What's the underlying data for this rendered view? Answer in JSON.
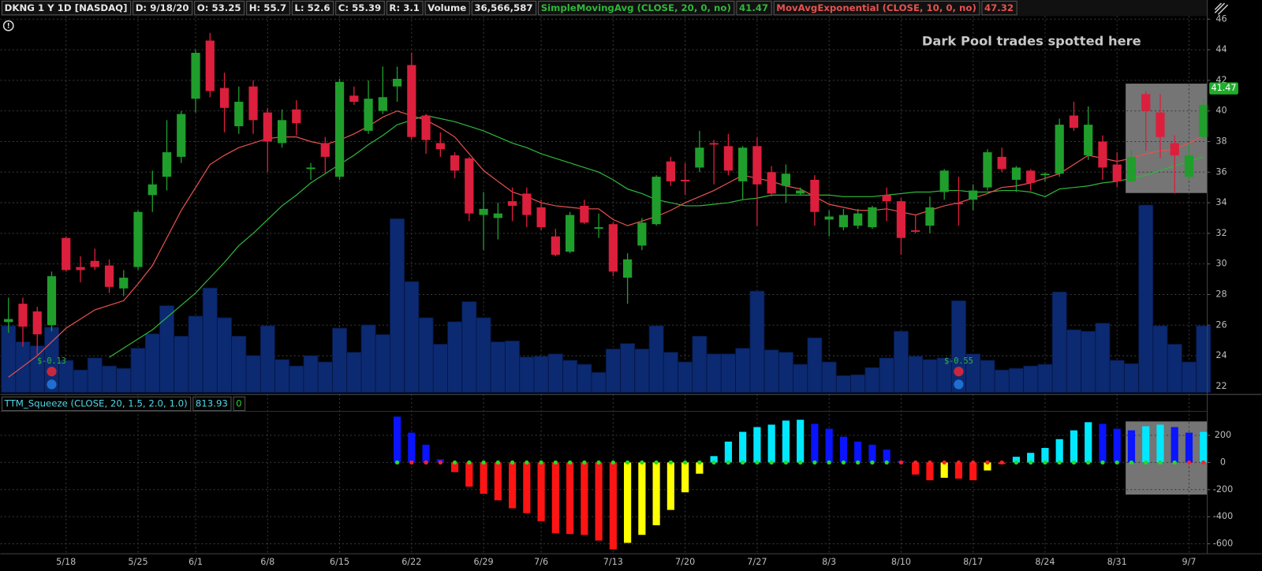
{
  "chart_data": {
    "type": "candlestick",
    "header": {
      "symbol": "DKNG 1 Y 1D [NASDAQ]",
      "date": "D: 9/18/20",
      "open": "O: 53.25",
      "high": "H: 55.7",
      "low": "L: 52.6",
      "close": "C: 55.39",
      "range": "R: 3.1"
    },
    "annotation": "Dark Pool trades spotted here",
    "categories": [
      null,
      null,
      null,
      null,
      "5/18",
      null,
      null,
      null,
      null,
      "5/25",
      null,
      null,
      null,
      "6/1",
      null,
      null,
      null,
      null,
      "6/8",
      null,
      null,
      null,
      null,
      "6/15",
      null,
      null,
      null,
      null,
      "6/22",
      null,
      null,
      null,
      null,
      "6/29",
      null,
      null,
      null,
      "7/6",
      null,
      null,
      null,
      null,
      "7/13",
      null,
      null,
      null,
      null,
      "7/20",
      null,
      null,
      null,
      null,
      "7/27",
      null,
      null,
      null,
      null,
      "8/3",
      null,
      null,
      null,
      null,
      "8/10",
      null,
      null,
      null,
      null,
      "8/17",
      null,
      null,
      null,
      null,
      "8/24",
      null,
      null,
      null,
      null,
      "8/31",
      null,
      null,
      null,
      null,
      "9/7",
      null
    ],
    "open": [
      26.2,
      27.4,
      26.9,
      26.0,
      31.7,
      29.8,
      30.2,
      29.9,
      28.4,
      29.8,
      34.5,
      35.7,
      37.0,
      40.8,
      44.6,
      41.5,
      39.0,
      41.6,
      39.9,
      37.9,
      40.1,
      36.2,
      37.9,
      35.7,
      41.0,
      38.7,
      40.0,
      41.6,
      43.0,
      39.7,
      37.9,
      37.1,
      36.9,
      33.2,
      33.0,
      34.1,
      34.6,
      33.7,
      31.8,
      30.8,
      33.8,
      32.3,
      32.6,
      29.1,
      31.2,
      32.6,
      36.7,
      35.5,
      36.3,
      37.9,
      37.7,
      35.4,
      37.7,
      36.0,
      35.1,
      34.6,
      35.5,
      32.9,
      32.4,
      32.5,
      32.4,
      34.5,
      34.1,
      32.2,
      32.5,
      34.7,
      34.0,
      34.2,
      35.0,
      37.0,
      35.5,
      36.1,
      35.8,
      35.9,
      39.7,
      37.1,
      38.0,
      36.5,
      35.4,
      41.1,
      39.9,
      37.9,
      35.7,
      38.3
    ],
    "high": [
      27.8,
      27.8,
      27.2,
      29.5,
      31.8,
      30.5,
      31.0,
      30.3,
      29.6,
      33.5,
      36.1,
      39.4,
      40.0,
      44.0,
      45.1,
      42.5,
      41.6,
      42.0,
      40.2,
      40.1,
      40.7,
      36.6,
      38.3,
      42.1,
      41.6,
      42.0,
      42.9,
      42.9,
      43.8,
      39.8,
      38.6,
      37.3,
      37.0,
      34.7,
      34.0,
      35.0,
      35.0,
      34.2,
      32.3,
      33.4,
      34.2,
      33.3,
      32.7,
      30.7,
      33.0,
      35.8,
      37.0,
      36.6,
      38.7,
      38.1,
      38.5,
      37.7,
      38.3,
      36.4,
      36.5,
      35.0,
      35.8,
      33.5,
      33.6,
      33.6,
      33.8,
      35.0,
      34.3,
      33.2,
      34.4,
      36.2,
      35.7,
      35.2,
      37.5,
      37.6,
      36.4,
      36.2,
      36.0,
      39.5,
      40.6,
      40.3,
      38.4,
      37.3,
      37.5,
      41.3,
      41.1,
      38.4,
      37.9,
      40.8
    ],
    "low": [
      25.5,
      24.6,
      24.0,
      25.6,
      29.5,
      28.8,
      29.6,
      28.1,
      27.9,
      29.6,
      33.4,
      34.8,
      36.6,
      39.9,
      40.9,
      38.6,
      38.5,
      38.5,
      36.0,
      37.6,
      38.4,
      35.5,
      35.9,
      35.5,
      40.4,
      38.5,
      39.8,
      40.6,
      38.1,
      37.2,
      37.0,
      35.6,
      32.8,
      30.9,
      31.6,
      32.8,
      32.4,
      32.2,
      30.5,
      30.7,
      32.6,
      31.7,
      29.2,
      27.4,
      30.9,
      32.5,
      35.1,
      34.5,
      36.0,
      35.2,
      35.8,
      34.2,
      32.5,
      34.4,
      34.0,
      34.5,
      32.5,
      31.8,
      32.2,
      32.3,
      32.3,
      32.8,
      30.6,
      32.0,
      32.0,
      34.2,
      32.5,
      33.5,
      34.8,
      36.0,
      34.7,
      34.8,
      35.4,
      35.7,
      38.7,
      36.8,
      35.5,
      35.0,
      35.3,
      37.4,
      36.9,
      34.6,
      35.5,
      38.2
    ],
    "close": [
      26.4,
      25.9,
      25.4,
      29.2,
      29.6,
      29.6,
      29.8,
      28.5,
      29.1,
      33.4,
      35.2,
      37.3,
      39.8,
      43.8,
      41.3,
      40.2,
      40.6,
      39.4,
      38.0,
      39.4,
      39.2,
      36.3,
      37.0,
      41.9,
      40.6,
      40.8,
      40.9,
      42.1,
      38.3,
      38.1,
      37.5,
      36.1,
      33.3,
      33.6,
      33.3,
      33.8,
      33.2,
      32.4,
      30.6,
      33.2,
      32.7,
      32.4,
      29.5,
      30.3,
      32.7,
      35.7,
      35.4,
      35.4,
      37.6,
      37.8,
      36.1,
      37.6,
      35.2,
      34.6,
      35.9,
      34.8,
      33.4,
      33.1,
      33.2,
      33.3,
      33.7,
      34.1,
      31.7,
      32.1,
      33.7,
      36.1,
      33.9,
      34.8,
      37.3,
      36.2,
      36.3,
      35.3,
      35.9,
      39.1,
      38.9,
      39.1,
      36.3,
      35.4,
      37.0,
      40.0,
      38.3,
      37.1,
      37.1,
      40.4
    ],
    "up_color": "#1f9e2c",
    "down_color": "#dc1f3c",
    "ylim": [
      21.6,
      46.2
    ],
    "yticks": [
      22,
      24,
      26,
      28,
      30,
      32,
      34,
      36,
      38,
      40,
      42,
      44,
      46
    ],
    "grid": true,
    "series": [
      {
        "name": "SimpleMovingAvg (CLOSE, 20, 0, no)",
        "readout": "41.47",
        "badge": 41.47,
        "color": "#2fb83a",
        "values": [
          null,
          null,
          null,
          null,
          null,
          null,
          null,
          23.9,
          24.5,
          25.1,
          25.7,
          26.5,
          27.3,
          28.1,
          29.1,
          30.1,
          31.2,
          32.0,
          32.9,
          33.8,
          34.5,
          35.3,
          35.9,
          36.5,
          37.1,
          37.8,
          38.4,
          39.1,
          39.4,
          39.7,
          39.5,
          39.3,
          39.0,
          38.7,
          38.3,
          37.9,
          37.6,
          37.2,
          36.9,
          36.6,
          36.3,
          36.0,
          35.5,
          34.9,
          34.6,
          34.2,
          34.0,
          33.8,
          33.8,
          33.9,
          34.0,
          34.2,
          34.3,
          34.5,
          34.5,
          34.5,
          34.5,
          34.5,
          34.4,
          34.4,
          34.4,
          34.5,
          34.6,
          34.7,
          34.7,
          34.8,
          34.8,
          34.7,
          34.7,
          34.8,
          34.8,
          34.7,
          34.4,
          34.9,
          35.0,
          35.1,
          35.3,
          35.4,
          35.6,
          35.8,
          36.1,
          36.4,
          36.7,
          37.0
        ]
      },
      {
        "name": "MovAvgExponential (CLOSE, 10, 0, no)",
        "readout": "47.32",
        "color": "#e8524f",
        "values": [
          22.6,
          23.3,
          24.0,
          24.9,
          25.8,
          26.4,
          27.0,
          27.3,
          27.6,
          28.7,
          29.9,
          31.7,
          33.5,
          35.0,
          36.5,
          37.1,
          37.6,
          37.9,
          38.2,
          38.3,
          38.3,
          38.0,
          37.8,
          38.1,
          38.5,
          39.0,
          39.6,
          40.0,
          39.7,
          39.4,
          38.9,
          38.3,
          37.2,
          36.1,
          35.4,
          34.7,
          34.4,
          34.0,
          33.8,
          33.7,
          33.6,
          33.6,
          32.9,
          32.5,
          32.8,
          33.1,
          33.5,
          34.0,
          34.4,
          34.8,
          35.3,
          35.8,
          35.6,
          35.4,
          35.1,
          34.9,
          34.4,
          33.9,
          33.7,
          33.5,
          33.5,
          33.6,
          33.4,
          33.2,
          33.5,
          33.8,
          34.0,
          34.3,
          34.6,
          35.0,
          35.1,
          35.3,
          35.6,
          35.9,
          36.5,
          37.1,
          36.9,
          36.7,
          36.9,
          37.2,
          37.4,
          37.5,
          37.9,
          38.4
        ]
      }
    ],
    "volume": {
      "label": "Volume",
      "readout": "36,566,587",
      "color": "#0c2a72",
      "vlim": [
        0,
        206
      ],
      "values": [
        36.5,
        27.7,
        25.5,
        35.7,
        17.6,
        12.3,
        18.9,
        14.5,
        13.2,
        24.2,
        32.1,
        47.5,
        30.8,
        41.8,
        57.2,
        40.9,
        30.8,
        20.2,
        36.5,
        18.0,
        14.5,
        20.2,
        16.7,
        35.2,
        22.0,
        37.0,
        31.7,
        95.1,
        60.7,
        40.9,
        26.4,
        38.7,
        49.7,
        40.9,
        27.7,
        28.2,
        19.4,
        19.8,
        21.1,
        17.6,
        15.4,
        11.0,
        23.8,
        26.8,
        23.8,
        36.5,
        22.0,
        16.7,
        30.8,
        21.1,
        21.1,
        24.2,
        55.5,
        23.3,
        22.0,
        15.4,
        29.9,
        16.7,
        9.2,
        9.7,
        13.6,
        18.9,
        33.5,
        19.8,
        18.0,
        18.9,
        50.2,
        21.1,
        17.6,
        12.3,
        13.2,
        14.5,
        15.4,
        55.0,
        34.3,
        33.5,
        37.9,
        17.6,
        15.8,
        102.6,
        36.5,
        26.4,
        16.7,
        36.5
      ]
    },
    "events": [
      {
        "label": "$-0.13"
      },
      {
        "label": "$-0.55"
      }
    ],
    "squeeze": {
      "title": "TTM_Squeeze (CLOSE, 20, 1.5, 2.0, 1.0)",
      "readouts": [
        "813.93",
        "0"
      ],
      "ylim": [
        -670,
        374
      ],
      "yticks": [
        -600,
        -400,
        -200,
        0,
        200
      ],
      "values": [
        null,
        null,
        null,
        null,
        null,
        null,
        null,
        null,
        null,
        null,
        null,
        null,
        null,
        null,
        null,
        null,
        null,
        null,
        null,
        null,
        null,
        null,
        null,
        null,
        null,
        null,
        null,
        338,
        220,
        131,
        24,
        -71,
        -178,
        -231,
        -279,
        -338,
        -374,
        -433,
        -522,
        -528,
        -534,
        -576,
        -641,
        -593,
        -534,
        -463,
        -350,
        -220,
        -83,
        47,
        154,
        226,
        261,
        279,
        309,
        315,
        285,
        249,
        190,
        154,
        131,
        95,
        12,
        -89,
        -131,
        -113,
        -119,
        -131,
        -59,
        -12,
        42,
        71,
        107,
        172,
        237,
        297,
        285,
        249,
        237,
        267,
        279,
        261,
        220,
        226
      ],
      "bar_colors": [
        null,
        null,
        null,
        null,
        null,
        null,
        null,
        null,
        null,
        null,
        null,
        null,
        null,
        null,
        null,
        null,
        null,
        null,
        null,
        null,
        null,
        null,
        null,
        null,
        null,
        null,
        null,
        "#0a14ff",
        "#0a14ff",
        "#0a14ff",
        "#0a14ff",
        "#ff1414",
        "#ff1414",
        "#ff1414",
        "#ff1414",
        "#ff1414",
        "#ff1414",
        "#ff1414",
        "#ff1414",
        "#ff1414",
        "#ff1414",
        "#ff1414",
        "#ff1414",
        "#ffff00",
        "#ffff00",
        "#ffff00",
        "#ffff00",
        "#ffff00",
        "#ffff00",
        "#00e8ff",
        "#00e8ff",
        "#00e8ff",
        "#00e8ff",
        "#00e8ff",
        "#00e8ff",
        "#00e8ff",
        "#0a14ff",
        "#0a14ff",
        "#0a14ff",
        "#0a14ff",
        "#0a14ff",
        "#0a14ff",
        "#0a14ff",
        "#ff1414",
        "#ff1414",
        "#ffff00",
        "#ff1414",
        "#ff1414",
        "#ffff00",
        "#ff1414",
        "#00e8ff",
        "#00e8ff",
        "#00e8ff",
        "#00e8ff",
        "#00e8ff",
        "#00e8ff",
        "#0a14ff",
        "#0a14ff",
        "#0a14ff",
        "#00e8ff",
        "#00e8ff",
        "#0a14ff",
        "#0a14ff",
        "#00e8ff"
      ],
      "dot_colors": [
        null,
        null,
        null,
        null,
        null,
        null,
        null,
        null,
        null,
        null,
        null,
        null,
        null,
        null,
        null,
        null,
        null,
        null,
        null,
        null,
        null,
        null,
        null,
        null,
        null,
        null,
        null,
        "#22dd22",
        "#ff2222",
        "#ff2222",
        "#ff2222",
        "#22dd22",
        "#22dd22",
        "#22dd22",
        "#22dd22",
        "#22dd22",
        "#22dd22",
        "#22dd22",
        "#22dd22",
        "#22dd22",
        "#22dd22",
        "#22dd22",
        "#22dd22",
        "#22dd22",
        "#22dd22",
        "#22dd22",
        "#22dd22",
        "#22dd22",
        "#22dd22",
        "#22dd22",
        "#22dd22",
        "#22dd22",
        "#22dd22",
        "#22dd22",
        "#22dd22",
        "#22dd22",
        "#22dd22",
        "#22dd22",
        "#22dd22",
        "#22dd22",
        "#22dd22",
        "#22dd22",
        "#ff2222",
        "#ff2222",
        "#ff2222",
        "#ff2222",
        "#ff2222",
        "#ff2222",
        "#ff2222",
        "#ff2222",
        "#22dd22",
        "#22dd22",
        "#22dd22",
        "#22dd22",
        "#22dd22",
        "#22dd22",
        "#22dd22",
        "#22dd22",
        "#22dd22",
        "#22dd22",
        "#22dd22",
        "#22dd22",
        "#ff2222",
        "#ff2222"
      ]
    }
  }
}
